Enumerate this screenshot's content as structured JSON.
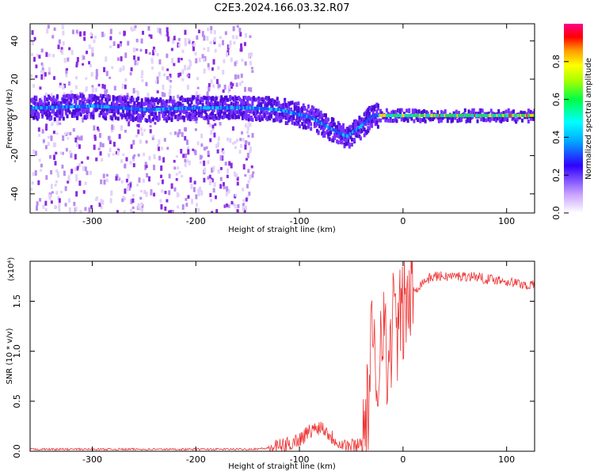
{
  "title": "C2E3.2024.166.03.32.R07",
  "chart_data": [
    {
      "type": "heatmap",
      "xlabel": "Height of straight line (km)",
      "ylabel": "Frequency (Hz)",
      "xlim": [
        -360,
        127
      ],
      "ylim": [
        -50,
        49
      ],
      "x_ticks": [
        -300,
        -200,
        -100,
        0,
        100
      ],
      "y_ticks": [
        -40,
        -20,
        0,
        20,
        40
      ],
      "colorbar": {
        "label": "Normalized spectral amplitude",
        "range": [
          0.0,
          1.0
        ],
        "ticks": [
          0.0,
          0.2,
          0.4,
          0.6,
          0.8
        ]
      },
      "ridge": {
        "x": [
          -350,
          -300,
          -250,
          -200,
          -150,
          -120,
          -90,
          -70,
          -55,
          -40,
          -30,
          -10,
          0,
          50,
          100,
          127
        ],
        "y": [
          5,
          6,
          4,
          5,
          5,
          4,
          0,
          -6,
          -10,
          -4,
          1,
          1,
          1,
          1,
          1,
          1
        ]
      }
    },
    {
      "type": "line",
      "xlabel": "Height of straight line (km)",
      "ylabel": "SNR (10 * v/v)",
      "y_multiplier": "(x10⁴)",
      "xlim": [
        -360,
        127
      ],
      "ylim": [
        0,
        1.9
      ],
      "x_ticks": [
        -300,
        -200,
        -100,
        0,
        100
      ],
      "y_ticks": [
        0.0,
        0.5,
        1.0,
        1.5
      ],
      "series": [
        {
          "color": "#ee3333",
          "x": [
            -360,
            -300,
            -250,
            -200,
            -150,
            -130,
            -115,
            -100,
            -90,
            -80,
            -75,
            -70,
            -60,
            -50,
            -42,
            -35,
            -30,
            -25,
            -20,
            -15,
            -10,
            -5,
            0,
            10,
            20,
            30,
            40,
            50,
            60,
            70,
            80,
            90,
            100,
            110,
            120,
            127
          ],
          "y": [
            0.02,
            0.02,
            0.02,
            0.02,
            0.02,
            0.03,
            0.05,
            0.12,
            0.2,
            0.25,
            0.22,
            0.15,
            0.08,
            0.05,
            0.07,
            0.3,
            1.1,
            0.6,
            1.5,
            0.7,
            1.35,
            1.2,
            1.4,
            1.6,
            1.7,
            1.75,
            1.75,
            1.75,
            1.75,
            1.75,
            1.72,
            1.72,
            1.7,
            1.68,
            1.66,
            1.66
          ]
        }
      ]
    }
  ]
}
